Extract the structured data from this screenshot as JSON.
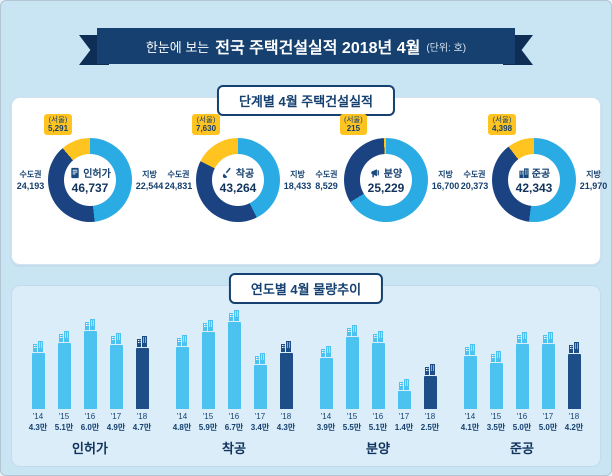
{
  "banner": {
    "prefix": "한눈에 보는",
    "title": "전국 주택건설실적 2018년 4월",
    "unit": "(단위: 호)"
  },
  "stage_section": {
    "title": "단계별 4월 주택건설실적",
    "donuts": [
      {
        "name": "인허가",
        "icon": "document-icon",
        "total": "46,737",
        "left_label": "수도권",
        "left_value": "24,193",
        "right_label": "지방",
        "right_value": "22,544",
        "seoul_label": "(서울)",
        "seoul_value": "5,291"
      },
      {
        "name": "착공",
        "icon": "shovel-icon",
        "total": "43,264",
        "left_label": "수도권",
        "left_value": "24,831",
        "right_label": "지방",
        "right_value": "18,433",
        "seoul_label": "(서울)",
        "seoul_value": "7,630"
      },
      {
        "name": "분양",
        "icon": "megaphone-icon",
        "total": "25,229",
        "left_label": "수도권",
        "left_value": "8,529",
        "right_label": "지방",
        "right_value": "16,700",
        "seoul_label": "(서울)",
        "seoul_value": "215"
      },
      {
        "name": "준공",
        "icon": "building-icon",
        "total": "42,343",
        "left_label": "수도권",
        "left_value": "20,373",
        "right_label": "지방",
        "right_value": "21,970",
        "seoul_label": "(서울)",
        "seoul_value": "4,398"
      }
    ]
  },
  "trend_section": {
    "title": "연도별 4월 물량추이"
  },
  "chart_data": [
    {
      "type": "pie",
      "title": "단계별 4월 주택건설실적",
      "unit": "호",
      "charts": [
        {
          "label": "인허가",
          "total": 46737,
          "segments": [
            {
              "name": "수도권",
              "value": 24193
            },
            {
              "name": "지방",
              "value": 22544
            }
          ],
          "callout": {
            "name": "(서울)",
            "value": 5291
          }
        },
        {
          "label": "착공",
          "total": 43264,
          "segments": [
            {
              "name": "수도권",
              "value": 24831
            },
            {
              "name": "지방",
              "value": 18433
            }
          ],
          "callout": {
            "name": "(서울)",
            "value": 7630
          }
        },
        {
          "label": "분양",
          "total": 25229,
          "segments": [
            {
              "name": "수도권",
              "value": 8529
            },
            {
              "name": "지방",
              "value": 16700
            }
          ],
          "callout": {
            "name": "(서울)",
            "value": 215
          }
        },
        {
          "label": "준공",
          "total": 42343,
          "segments": [
            {
              "name": "수도권",
              "value": 20373
            },
            {
              "name": "지방",
              "value": 21970
            }
          ],
          "callout": {
            "name": "(서울)",
            "value": 4398
          }
        }
      ]
    },
    {
      "type": "bar",
      "title": "연도별 4월 물량추이",
      "categories": [
        "'14",
        "'15",
        "'16",
        "'17",
        "'18"
      ],
      "unit": "만 호",
      "ylim": [
        0,
        7
      ],
      "highlight_category": "'18",
      "series": [
        {
          "name": "인허가",
          "values": [
            4.3,
            5.1,
            6.0,
            4.9,
            4.7
          ],
          "labels": [
            "4.3만",
            "5.1만",
            "6.0만",
            "4.9만",
            "4.7만"
          ]
        },
        {
          "name": "착공",
          "values": [
            4.8,
            5.9,
            6.7,
            3.4,
            4.3
          ],
          "labels": [
            "4.8만",
            "5.9만",
            "6.7만",
            "3.4만",
            "4.3만"
          ]
        },
        {
          "name": "분양",
          "values": [
            3.9,
            5.5,
            5.1,
            1.4,
            2.5
          ],
          "labels": [
            "3.9만",
            "5.5만",
            "5.1만",
            "1.4만",
            "2.5만"
          ]
        },
        {
          "name": "준공",
          "values": [
            4.1,
            3.5,
            5.0,
            5.0,
            4.2
          ],
          "labels": [
            "4.1만",
            "3.5만",
            "5.0만",
            "5.0만",
            "4.2만"
          ]
        }
      ]
    }
  ],
  "colors": {
    "background": "#c9e5f4",
    "banner": "#15406f",
    "capital": "#1b4382",
    "region": "#2aabe3",
    "seoul": "#ffc41f",
    "bar": "#4cc2f1",
    "bar_highlight": "#1d4e88"
  }
}
